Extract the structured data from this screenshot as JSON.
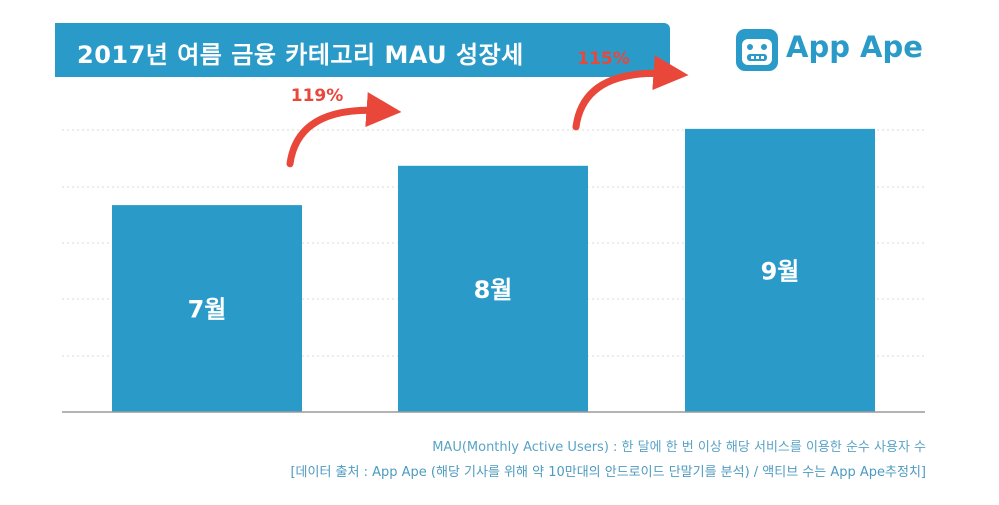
{
  "header": {
    "title": "2017년 여름 금융 카테고리 MAU 성장세",
    "background_color": "#2a9bc9"
  },
  "brand": {
    "name": "App Ape",
    "icon": "ape-face-icon",
    "color": "#2a9bc9"
  },
  "chart_data": {
    "type": "bar",
    "categories": [
      "7월",
      "8월",
      "9월"
    ],
    "values": [
      100,
      119,
      136.85
    ],
    "ylim": [
      0,
      145
    ],
    "grid": true,
    "bar_color": "#2a9bc9",
    "growth_annotations": [
      {
        "from": "7월",
        "to": "8월",
        "label": "119%"
      },
      {
        "from": "8월",
        "to": "9월",
        "label": "115%"
      }
    ],
    "annotation_color": "#e8473a"
  },
  "footnotes": {
    "definition": "MAU(Monthly Active Users) : 한 달에 한 번 이상 해당 서비스를 이용한 순수 사용자 수",
    "source": "[데이터 출처 : App Ape (해당 기사를 위해 약 10만대의 안드로이드 단말기를 분석) / 액티브 수는 App Ape추정치]"
  }
}
